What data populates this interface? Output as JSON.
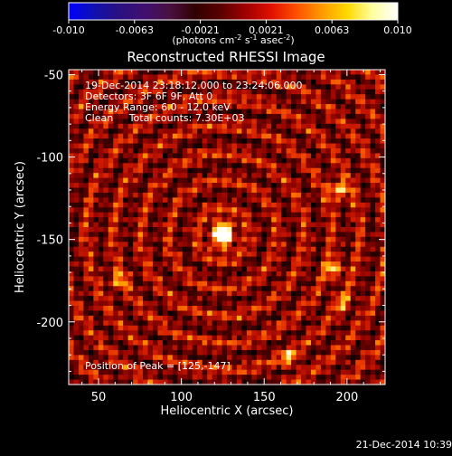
{
  "colorbar": {
    "tick_labels": [
      "-0.010",
      "-0.0063",
      "-0.0021",
      "0.0021",
      "0.0063",
      "0.010"
    ],
    "units_label": "(photons cm",
    "units_exp1": "-2",
    "units_mid": " s",
    "units_exp2": "-1",
    "units_mid2": " asec",
    "units_exp3": "-2",
    "units_end": ")",
    "gradient": [
      "#0000ff",
      "#1010b0",
      "#2a1080",
      "#401070",
      "#4a1040",
      "#300000",
      "#5a0000",
      "#a00000",
      "#e01000",
      "#ff5000",
      "#ff9a00",
      "#ffd800",
      "#ffffa0",
      "#ffffff"
    ]
  },
  "title": "Reconstructed RHESSI Image",
  "annotations": {
    "line1": "19-Dec-2014 23:18:12.000 to 23:24:06.000",
    "line2": "Detectors: 3F 6F 9F, Att 0",
    "line3": "Energy Range: 6.0 - 12.0 keV",
    "line4": "Clean     Total counts: 7.30E+03",
    "peak": "Position of Peak = [125,-147]"
  },
  "footer_timestamp": "21-Dec-2014 10:39",
  "chart_data": {
    "type": "heatmap",
    "title": "Reconstructed RHESSI Image",
    "xlabel": "Heliocentric X (arcsec)",
    "ylabel": "Heliocentric Y (arcsec)",
    "xlim": [
      32,
      223
    ],
    "ylim": [
      -238,
      -47
    ],
    "x_ticks": [
      50,
      100,
      150,
      200
    ],
    "y_ticks": [
      -50,
      -100,
      -150,
      -200
    ],
    "x_tick_labels": [
      "50",
      "100",
      "150",
      "200"
    ],
    "y_tick_labels": [
      "-50",
      "-100",
      "-150",
      "-200"
    ],
    "peak_position": [
      125,
      -147
    ],
    "secondary_sources": [
      {
        "x": 195,
        "y": -120,
        "intensity": 0.55
      },
      {
        "x": 192,
        "y": -168,
        "intensity": 0.45
      },
      {
        "x": 165,
        "y": -222,
        "intensity": 0.4
      },
      {
        "x": 62,
        "y": -175,
        "intensity": 0.35
      },
      {
        "x": 197,
        "y": -188,
        "intensity": 0.3
      }
    ],
    "color_range": [
      -0.01,
      0.01
    ]
  }
}
